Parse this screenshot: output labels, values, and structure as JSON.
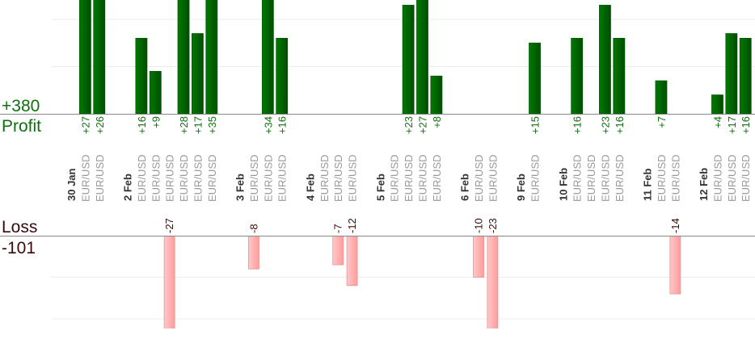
{
  "chart_data": {
    "type": "bar",
    "profit_label": "Profit",
    "profit_total": "+380",
    "loss_label": "Loss",
    "loss_total": "-101",
    "colors": {
      "profit": "#006600",
      "loss": "#ffb0b0",
      "profit_text": "#107010",
      "loss_text": "#3a0a0a"
    },
    "grid": true,
    "groups": [
      {
        "date": "30 Jan",
        "trades": [
          {
            "pair": "EUR/USD",
            "result": 27
          },
          {
            "pair": "EUR/USD",
            "result": 26
          }
        ]
      },
      {
        "date": "2 Feb",
        "trades": [
          {
            "pair": "EUR/USD",
            "result": 16
          },
          {
            "pair": "EUR/USD",
            "result": 9
          },
          {
            "pair": "EUR/USD",
            "result": -27
          },
          {
            "pair": "EUR/USD",
            "result": 28
          },
          {
            "pair": "EUR/USD",
            "result": 17
          },
          {
            "pair": "EUR/USD",
            "result": 35
          }
        ]
      },
      {
        "date": "3 Feb",
        "trades": [
          {
            "pair": "EUR/USD",
            "result": -8
          },
          {
            "pair": "EUR/USD",
            "result": 34
          },
          {
            "pair": "EUR/USD",
            "result": 16
          }
        ]
      },
      {
        "date": "4 Feb",
        "trades": [
          {
            "pair": "EUR/USD",
            "result": 0
          },
          {
            "pair": "EUR/USD",
            "result": -7
          },
          {
            "pair": "EUR/USD",
            "result": -12
          }
        ]
      },
      {
        "date": "5 Feb",
        "trades": [
          {
            "pair": "EUR/USD",
            "result": 0
          },
          {
            "pair": "EUR/USD",
            "result": 23
          },
          {
            "pair": "EUR/USD",
            "result": 27
          },
          {
            "pair": "EUR/USD",
            "result": 8
          }
        ]
      },
      {
        "date": "6 Feb",
        "trades": [
          {
            "pair": "EUR/USD",
            "result": -10
          },
          {
            "pair": "EUR/USD",
            "result": -23
          }
        ]
      },
      {
        "date": "9 Feb",
        "trades": [
          {
            "pair": "EUR/USD",
            "result": 15
          }
        ]
      },
      {
        "date": "10 Feb",
        "trades": [
          {
            "pair": "EUR/USD",
            "result": 16
          },
          {
            "pair": "EUR/USD",
            "result": 0
          },
          {
            "pair": "EUR/USD",
            "result": 23
          },
          {
            "pair": "EUR/USD",
            "result": 16
          }
        ]
      },
      {
        "date": "11 Feb",
        "trades": [
          {
            "pair": "EUR/USD",
            "result": 7
          },
          {
            "pair": "EUR/USD",
            "result": -14
          }
        ]
      },
      {
        "date": "12 Feb",
        "trades": [
          {
            "pair": "EUR/USD",
            "result": 4
          },
          {
            "pair": "EUR/USD",
            "result": 17
          },
          {
            "pair": "EUR/USD",
            "result": 16
          }
        ]
      }
    ]
  }
}
